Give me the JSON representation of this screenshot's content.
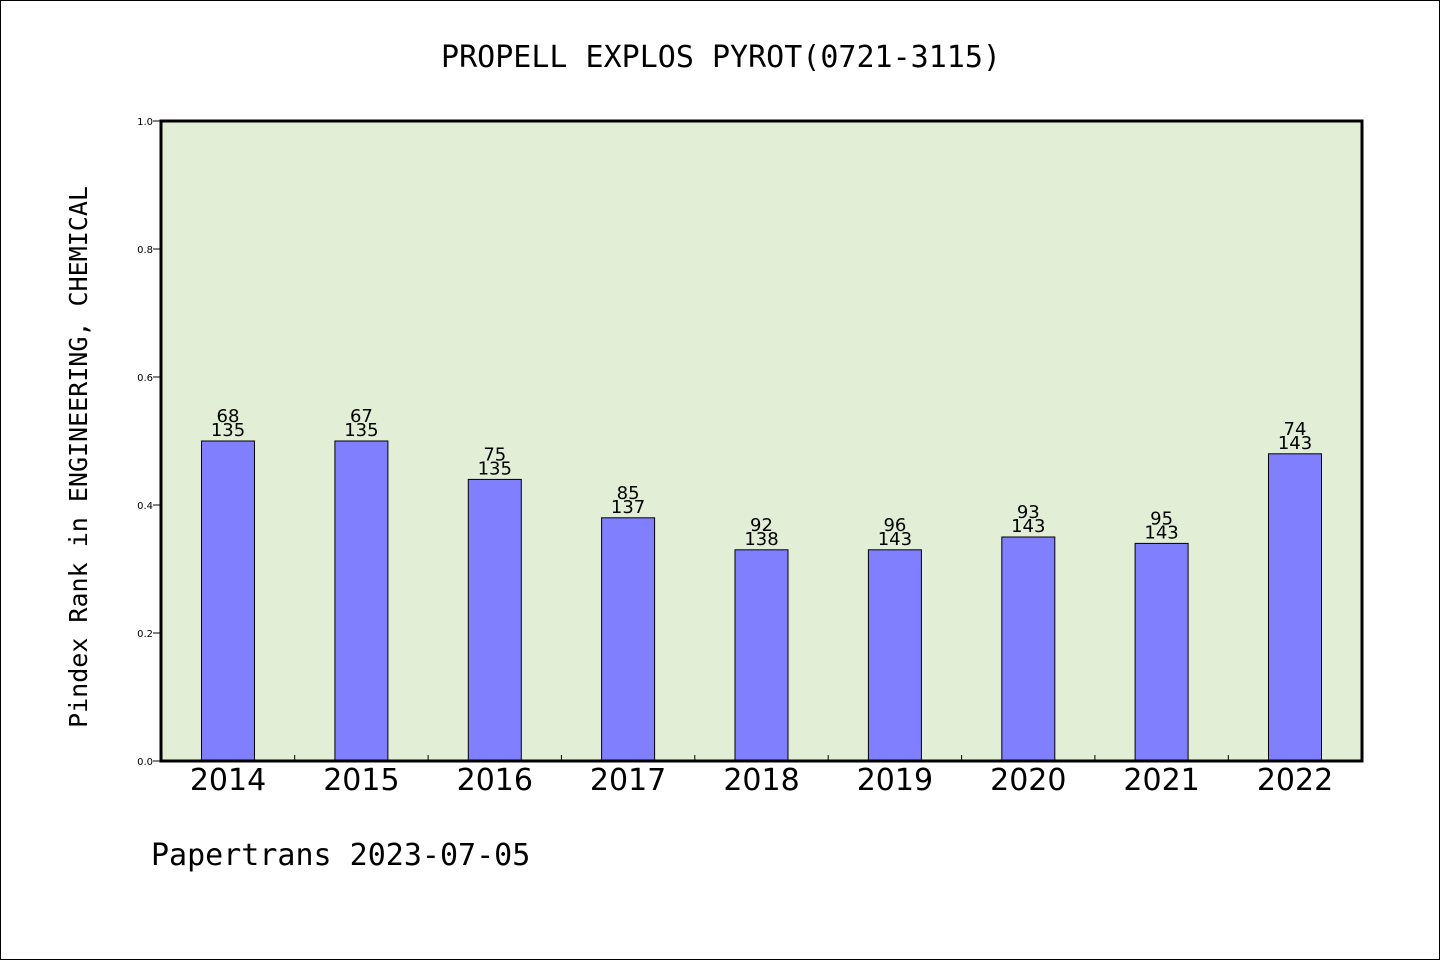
{
  "chart_data": {
    "type": "bar",
    "title": "PROPELL EXPLOS PYROT(0721-3115)",
    "ylabel": "Pindex Rank in ENGINEERING, CHEMICAL",
    "xlabel": "",
    "ylim": [
      0.0,
      1.0
    ],
    "yticks": [
      "0.0",
      "0.2",
      "0.4",
      "0.6",
      "0.8",
      "1.0"
    ],
    "categories": [
      "2014",
      "2015",
      "2016",
      "2017",
      "2018",
      "2019",
      "2020",
      "2021",
      "2022"
    ],
    "values": [
      0.5,
      0.5,
      0.44,
      0.38,
      0.33,
      0.33,
      0.35,
      0.34,
      0.48
    ],
    "labels_rank": [
      "68",
      "67",
      "75",
      "85",
      "92",
      "96",
      "93",
      "95",
      "74"
    ],
    "labels_total": [
      "135",
      "135",
      "135",
      "137",
      "138",
      "143",
      "143",
      "143",
      "143"
    ],
    "grid": false,
    "legend": "none",
    "colors": {
      "plot_background": "#e2efd6",
      "bar_fill": "#8080ff",
      "bar_stroke": "#000000",
      "axis": "#000000"
    }
  },
  "footer": "Papertrans 2023-07-05"
}
